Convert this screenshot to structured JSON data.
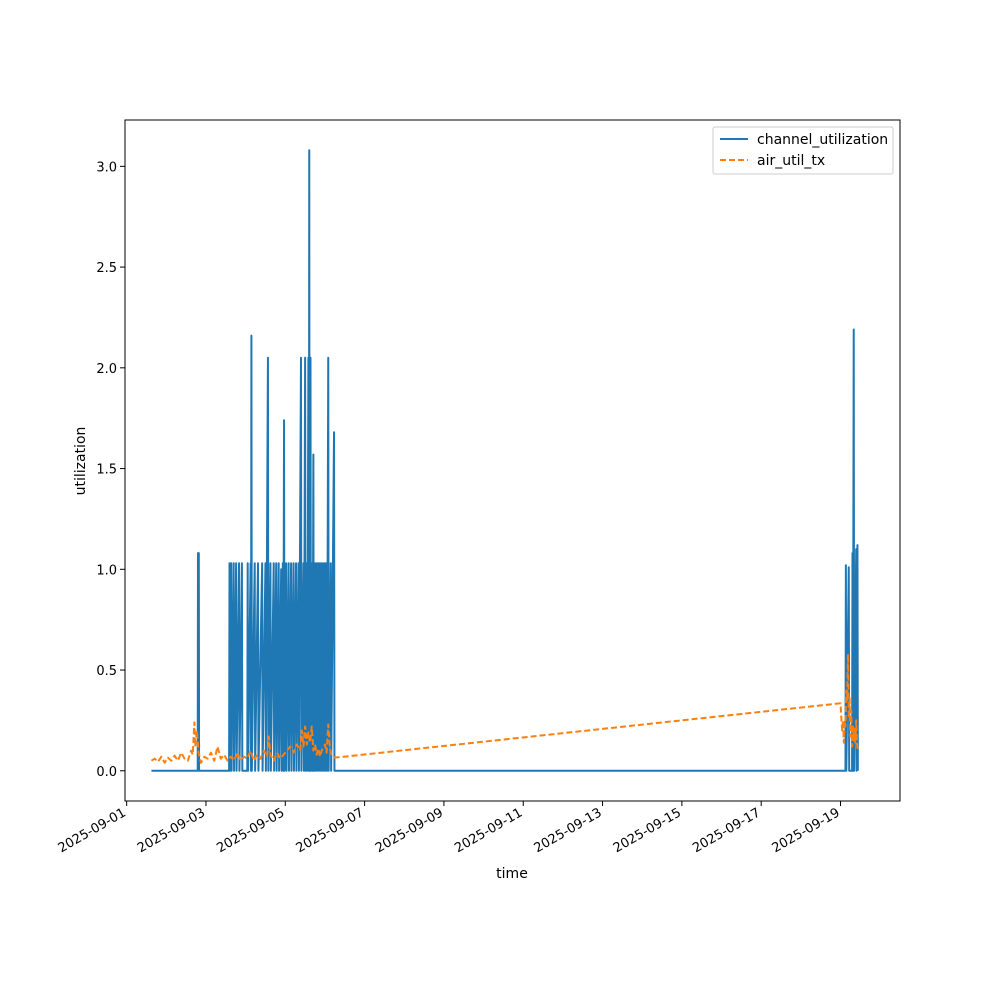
{
  "chart_data": {
    "type": "line",
    "title": "",
    "xlabel": "time",
    "ylabel": "utilization",
    "x_tick_labels": [
      "2025-09-01",
      "2025-09-03",
      "2025-09-05",
      "2025-09-07",
      "2025-09-09",
      "2025-09-11",
      "2025-09-13",
      "2025-09-15",
      "2025-09-17",
      "2025-09-19"
    ],
    "y_tick_labels": [
      "0.0",
      "0.5",
      "1.0",
      "1.5",
      "2.0",
      "2.5",
      "3.0"
    ],
    "xlim": [
      "2025-08-31T23:00",
      "2025-09-20T12:00"
    ],
    "ylim": [
      -0.15,
      3.23
    ],
    "grid": false,
    "legend_position": "top-right",
    "series": [
      {
        "name": "channel_utilization",
        "color": "#1f77b4",
        "style": "solid",
        "points": [
          [
            "2025-09-01T15:00",
            0
          ],
          [
            "2025-09-02T19:00",
            0
          ],
          [
            "2025-09-02T19:10",
            1.08
          ],
          [
            "2025-09-02T19:40",
            1.08
          ],
          [
            "2025-09-02T19:50",
            0
          ],
          [
            "2025-09-03T14:00",
            0
          ],
          [
            "2025-09-03T14:15",
            1.03
          ],
          [
            "2025-09-03T14:30",
            0
          ],
          [
            "2025-09-03T15:15",
            1.03
          ],
          [
            "2025-09-03T15:30",
            0
          ],
          [
            "2025-09-03T16:45",
            1.03
          ],
          [
            "2025-09-03T17:00",
            0
          ],
          [
            "2025-09-03T18:15",
            1.03
          ],
          [
            "2025-09-03T18:30",
            0
          ],
          [
            "2025-09-03T20:00",
            1.03
          ],
          [
            "2025-09-03T20:15",
            0
          ],
          [
            "2025-09-03T21:45",
            1.03
          ],
          [
            "2025-09-03T22:00",
            0
          ],
          [
            "2025-09-04T01:00",
            0
          ],
          [
            "2025-09-04T01:15",
            1.03
          ],
          [
            "2025-09-04T01:30",
            0
          ],
          [
            "2025-09-04T03:00",
            1.03
          ],
          [
            "2025-09-04T03:15",
            0
          ],
          [
            "2025-09-04T03:30",
            2.16
          ],
          [
            "2025-09-04T03:45",
            0
          ],
          [
            "2025-09-04T05:30",
            1.03
          ],
          [
            "2025-09-04T05:45",
            0
          ],
          [
            "2025-09-04T07:30",
            1.03
          ],
          [
            "2025-09-04T07:45",
            0
          ],
          [
            "2025-09-04T10:00",
            1.03
          ],
          [
            "2025-09-04T10:15",
            0
          ],
          [
            "2025-09-04T12:00",
            1.03
          ],
          [
            "2025-09-04T12:15",
            0
          ],
          [
            "2025-09-04T13:30",
            2.05
          ],
          [
            "2025-09-04T13:45",
            0
          ],
          [
            "2025-09-04T15:00",
            1.03
          ],
          [
            "2025-09-04T15:15",
            0
          ],
          [
            "2025-09-04T17:00",
            1.03
          ],
          [
            "2025-09-04T17:15",
            0
          ],
          [
            "2025-09-04T18:30",
            1.03
          ],
          [
            "2025-09-04T18:45",
            0
          ],
          [
            "2025-09-04T20:00",
            1.03
          ],
          [
            "2025-09-04T20:15",
            0
          ],
          [
            "2025-09-04T21:30",
            1.0
          ],
          [
            "2025-09-04T21:45",
            0
          ],
          [
            "2025-09-04T22:30",
            1.03
          ],
          [
            "2025-09-04T22:45",
            0
          ],
          [
            "2025-09-04T23:15",
            1.74
          ],
          [
            "2025-09-04T23:30",
            0
          ],
          [
            "2025-09-05T00:30",
            1.03
          ],
          [
            "2025-09-05T00:45",
            0
          ],
          [
            "2025-09-05T02:00",
            1.03
          ],
          [
            "2025-09-05T02:15",
            0
          ],
          [
            "2025-09-05T03:30",
            1.03
          ],
          [
            "2025-09-05T03:45",
            0
          ],
          [
            "2025-09-05T05:00",
            1.03
          ],
          [
            "2025-09-05T05:15",
            0
          ],
          [
            "2025-09-05T06:30",
            1.03
          ],
          [
            "2025-09-05T06:45",
            0
          ],
          [
            "2025-09-05T08:00",
            1.03
          ],
          [
            "2025-09-05T08:15",
            0
          ],
          [
            "2025-09-05T09:30",
            2.05
          ],
          [
            "2025-09-05T09:45",
            0
          ],
          [
            "2025-09-05T11:00",
            1.03
          ],
          [
            "2025-09-05T11:15",
            0
          ],
          [
            "2025-09-05T12:00",
            2.05
          ],
          [
            "2025-09-05T12:15",
            0
          ],
          [
            "2025-09-05T13:00",
            1.03
          ],
          [
            "2025-09-05T13:15",
            0
          ],
          [
            "2025-09-05T14:00",
            2.05
          ],
          [
            "2025-09-05T14:15",
            0
          ],
          [
            "2025-09-05T14:30",
            3.08
          ],
          [
            "2025-09-05T14:45",
            0
          ],
          [
            "2025-09-05T15:15",
            2.05
          ],
          [
            "2025-09-05T15:30",
            0
          ],
          [
            "2025-09-05T16:15",
            1.03
          ],
          [
            "2025-09-05T16:30",
            0
          ],
          [
            "2025-09-05T17:00",
            1.57
          ],
          [
            "2025-09-05T17:15",
            0
          ],
          [
            "2025-09-05T18:00",
            1.03
          ],
          [
            "2025-09-05T18:15",
            0
          ],
          [
            "2025-09-05T19:00",
            1.03
          ],
          [
            "2025-09-05T19:15",
            0
          ],
          [
            "2025-09-05T20:00",
            1.03
          ],
          [
            "2025-09-05T20:15",
            0
          ],
          [
            "2025-09-05T21:00",
            1.03
          ],
          [
            "2025-09-05T21:15",
            0
          ],
          [
            "2025-09-05T22:00",
            1.03
          ],
          [
            "2025-09-05T22:15",
            0
          ],
          [
            "2025-09-05T23:00",
            1.03
          ],
          [
            "2025-09-05T23:15",
            0
          ],
          [
            "2025-09-06T00:00",
            1.03
          ],
          [
            "2025-09-06T00:15",
            0
          ],
          [
            "2025-09-06T01:00",
            1.03
          ],
          [
            "2025-09-06T01:15",
            0
          ],
          [
            "2025-09-06T02:00",
            2.05
          ],
          [
            "2025-09-06T02:15",
            0
          ],
          [
            "2025-09-06T03:30",
            1.03
          ],
          [
            "2025-09-06T03:45",
            0
          ],
          [
            "2025-09-06T05:30",
            1.68
          ],
          [
            "2025-09-06T05:45",
            0
          ],
          [
            "2025-09-06T06:30",
            0
          ],
          [
            "2025-09-19T00:00",
            0
          ],
          [
            "2025-09-19T03:00",
            0
          ],
          [
            "2025-09-19T03:15",
            1.02
          ],
          [
            "2025-09-19T03:30",
            0
          ],
          [
            "2025-09-19T05:00",
            1.01
          ],
          [
            "2025-09-19T05:15",
            0
          ],
          [
            "2025-09-19T07:00",
            0
          ],
          [
            "2025-09-19T07:15",
            1.08
          ],
          [
            "2025-09-19T07:30",
            0
          ],
          [
            "2025-09-19T08:00",
            2.19
          ],
          [
            "2025-09-19T08:15",
            0
          ],
          [
            "2025-09-19T09:30",
            1.1
          ],
          [
            "2025-09-19T09:45",
            0
          ],
          [
            "2025-09-19T10:15",
            1.12
          ],
          [
            "2025-09-19T10:30",
            0
          ]
        ]
      },
      {
        "name": "air_util_tx",
        "color": "#ff7f0e",
        "style": "dashed",
        "points": [
          [
            "2025-09-01T15:00",
            0.05
          ],
          [
            "2025-09-01T17:00",
            0.06
          ],
          [
            "2025-09-01T19:00",
            0.045
          ],
          [
            "2025-09-01T21:00",
            0.07
          ],
          [
            "2025-09-01T23:00",
            0.04
          ],
          [
            "2025-09-02T01:00",
            0.065
          ],
          [
            "2025-09-02T03:00",
            0.05
          ],
          [
            "2025-09-02T05:00",
            0.075
          ],
          [
            "2025-09-02T07:00",
            0.05
          ],
          [
            "2025-09-02T09:00",
            0.09
          ],
          [
            "2025-09-02T11:00",
            0.06
          ],
          [
            "2025-09-02T13:00",
            0.05
          ],
          [
            "2025-09-02T15:00",
            0.1
          ],
          [
            "2025-09-02T16:00",
            0.08
          ],
          [
            "2025-09-02T17:00",
            0.24
          ],
          [
            "2025-09-02T17:30",
            0.12
          ],
          [
            "2025-09-02T18:30",
            0.2
          ],
          [
            "2025-09-02T19:30",
            0.09
          ],
          [
            "2025-09-02T21:00",
            0.04
          ],
          [
            "2025-09-02T23:00",
            0.07
          ],
          [
            "2025-09-03T01:00",
            0.06
          ],
          [
            "2025-09-03T03:00",
            0.09
          ],
          [
            "2025-09-03T05:00",
            0.05
          ],
          [
            "2025-09-03T07:00",
            0.12
          ],
          [
            "2025-09-03T09:00",
            0.06
          ],
          [
            "2025-09-03T11:00",
            0.08
          ],
          [
            "2025-09-03T13:00",
            0.05
          ],
          [
            "2025-09-03T15:00",
            0.07
          ],
          [
            "2025-09-03T17:00",
            0.05
          ],
          [
            "2025-09-03T19:00",
            0.09
          ],
          [
            "2025-09-03T21:00",
            0.05
          ],
          [
            "2025-09-03T23:00",
            0.07
          ],
          [
            "2025-09-04T01:00",
            0.06
          ],
          [
            "2025-09-04T03:00",
            0.1
          ],
          [
            "2025-09-04T05:00",
            0.05
          ],
          [
            "2025-09-04T07:00",
            0.08
          ],
          [
            "2025-09-04T09:00",
            0.06
          ],
          [
            "2025-09-04T11:00",
            0.1
          ],
          [
            "2025-09-04T13:00",
            0.07
          ],
          [
            "2025-09-04T14:00",
            0.17
          ],
          [
            "2025-09-04T15:00",
            0.08
          ],
          [
            "2025-09-04T17:00",
            0.05
          ],
          [
            "2025-09-04T19:00",
            0.09
          ],
          [
            "2025-09-04T21:00",
            0.06
          ],
          [
            "2025-09-04T23:00",
            0.08
          ],
          [
            "2025-09-05T01:00",
            0.1
          ],
          [
            "2025-09-05T03:00",
            0.12
          ],
          [
            "2025-09-05T05:00",
            0.09
          ],
          [
            "2025-09-05T07:00",
            0.13
          ],
          [
            "2025-09-05T09:00",
            0.1
          ],
          [
            "2025-09-05T10:00",
            0.2
          ],
          [
            "2025-09-05T11:00",
            0.12
          ],
          [
            "2025-09-05T12:00",
            0.22
          ],
          [
            "2025-09-05T13:00",
            0.13
          ],
          [
            "2025-09-05T14:00",
            0.19
          ],
          [
            "2025-09-05T15:00",
            0.14
          ],
          [
            "2025-09-05T16:00",
            0.22
          ],
          [
            "2025-09-05T17:00",
            0.1
          ],
          [
            "2025-09-05T18:00",
            0.13
          ],
          [
            "2025-09-05T19:00",
            0.08
          ],
          [
            "2025-09-05T20:00",
            0.11
          ],
          [
            "2025-09-05T21:00",
            0.07
          ],
          [
            "2025-09-05T22:00",
            0.1
          ],
          [
            "2025-09-06T00:00",
            0.13
          ],
          [
            "2025-09-06T01:00",
            0.09
          ],
          [
            "2025-09-06T02:00",
            0.23
          ],
          [
            "2025-09-06T03:00",
            0.11
          ],
          [
            "2025-09-06T04:00",
            0.08
          ],
          [
            "2025-09-06T06:00",
            0.065
          ],
          [
            "2025-09-19T00:00",
            0.335
          ],
          [
            "2025-09-19T00:30",
            0.26
          ],
          [
            "2025-09-19T01:00",
            0.2
          ],
          [
            "2025-09-19T01:30",
            0.25
          ],
          [
            "2025-09-19T02:00",
            0.14
          ],
          [
            "2025-09-19T02:30",
            0.25
          ],
          [
            "2025-09-19T03:00",
            0.22
          ],
          [
            "2025-09-19T03:30",
            0.4
          ],
          [
            "2025-09-19T04:00",
            0.35
          ],
          [
            "2025-09-19T04:30",
            0.58
          ],
          [
            "2025-09-19T05:00",
            0.26
          ],
          [
            "2025-09-19T05:30",
            0.36
          ],
          [
            "2025-09-19T06:00",
            0.17
          ],
          [
            "2025-09-19T06:30",
            0.3
          ],
          [
            "2025-09-19T07:00",
            0.12
          ],
          [
            "2025-09-19T07:30",
            0.22
          ],
          [
            "2025-09-19T08:00",
            0.15
          ],
          [
            "2025-09-19T08:30",
            0.21
          ],
          [
            "2025-09-19T09:00",
            0.14
          ],
          [
            "2025-09-19T09:30",
            0.25
          ],
          [
            "2025-09-19T10:00",
            0.13
          ],
          [
            "2025-09-19T10:30",
            0.1
          ]
        ]
      }
    ]
  }
}
